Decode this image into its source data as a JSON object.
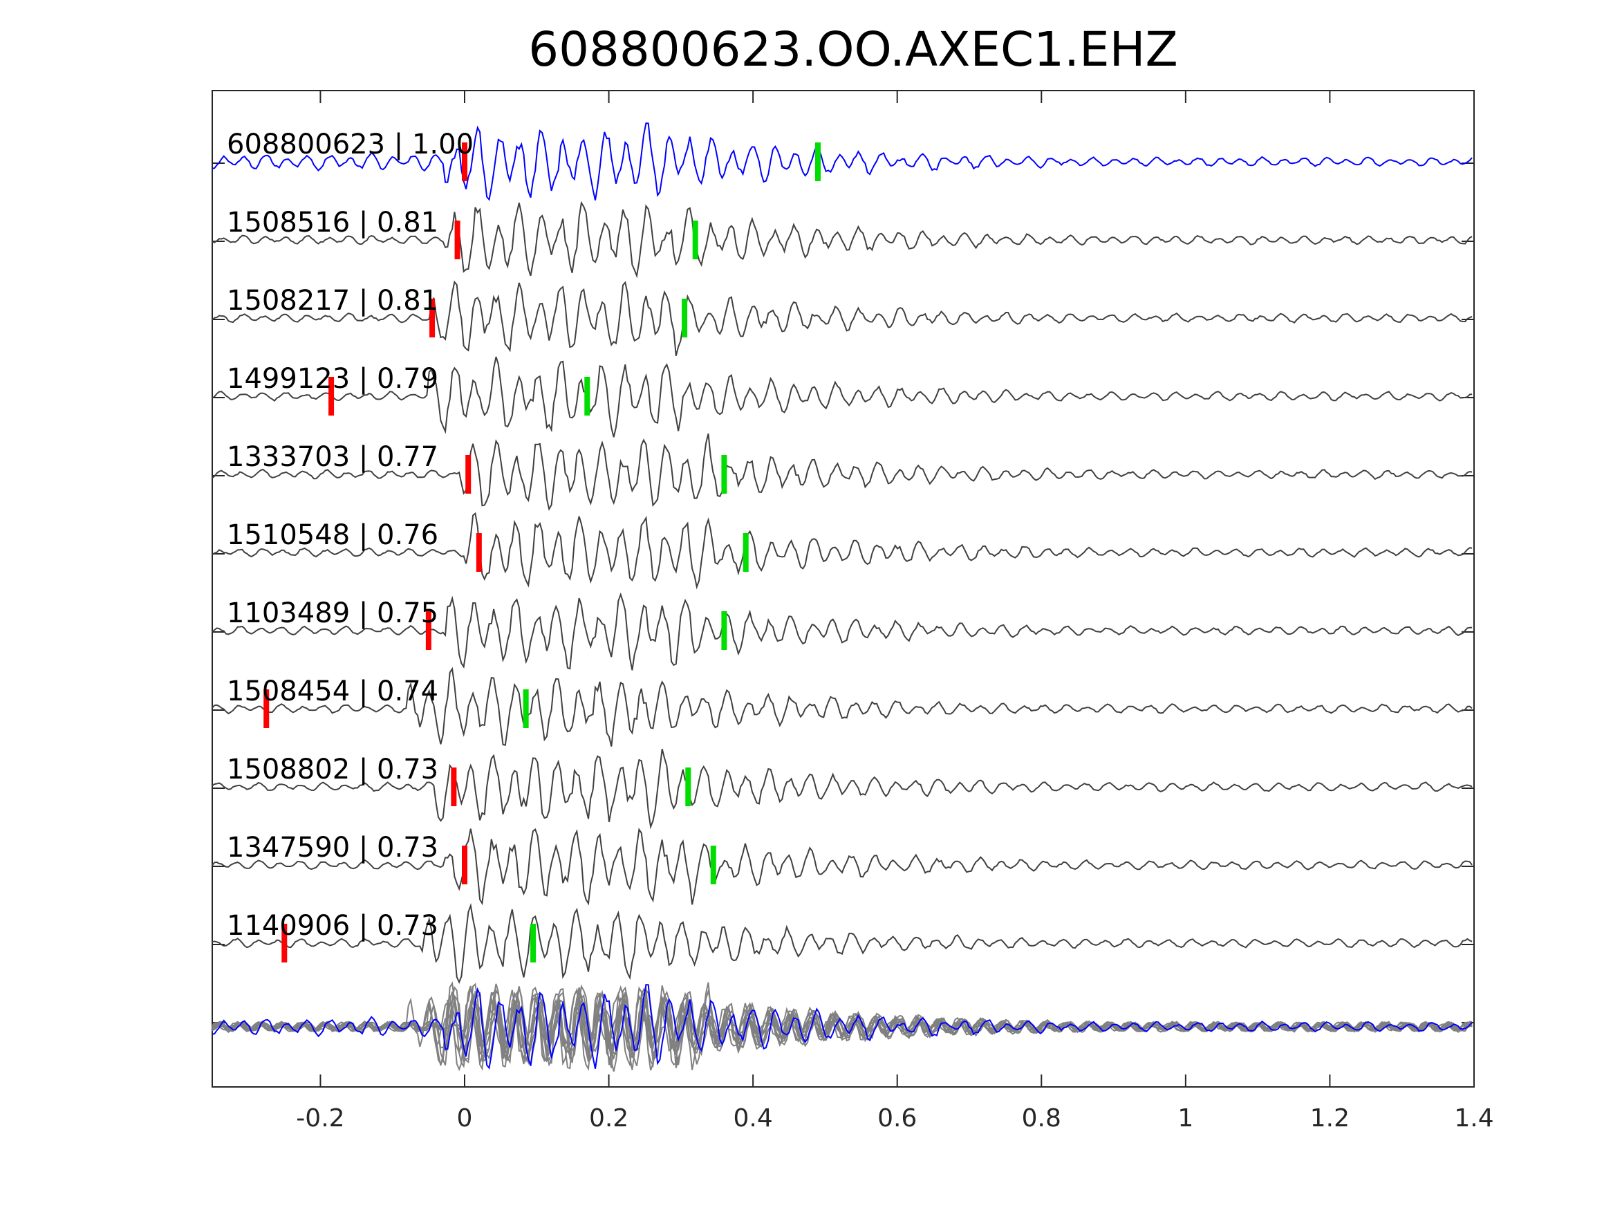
{
  "chart_data": {
    "type": "line",
    "title": "608800623.OO.AXEC1.EHZ",
    "xlabel": "",
    "ylabel": "",
    "xlim": [
      -0.35,
      1.4
    ],
    "xticks": [
      -0.2,
      0,
      0.2,
      0.4,
      0.6,
      0.8,
      1,
      1.2,
      1.4
    ],
    "xtick_labels": [
      "-0.2",
      "0",
      "0.2",
      "0.4",
      "0.6",
      "0.8",
      "1",
      "1.2",
      "1.4"
    ],
    "grid": false,
    "colors": {
      "master_trace": "#0000ff",
      "neighbor_trace": "#404040",
      "overlay_trace": "#808080",
      "p_pick": "#ff0000",
      "s_pick": "#00dd00"
    },
    "series": [
      {
        "label": "608800623 | 1.00",
        "p_pick": 0.0,
        "s_pick": 0.49,
        "onset": 0.0,
        "master": true
      },
      {
        "label": "1508516 | 0.81",
        "p_pick": -0.01,
        "s_pick": 0.32,
        "onset": 0.0
      },
      {
        "label": "1508217 | 0.81",
        "p_pick": -0.045,
        "s_pick": 0.305,
        "onset": -0.02
      },
      {
        "label": "1499123 | 0.79",
        "p_pick": -0.185,
        "s_pick": 0.17,
        "onset": -0.02
      },
      {
        "label": "1333703 | 0.77",
        "p_pick": 0.005,
        "s_pick": 0.36,
        "onset": 0.02
      },
      {
        "label": "1510548 | 0.76",
        "p_pick": 0.02,
        "s_pick": 0.39,
        "onset": 0.03
      },
      {
        "label": "1103489 | 0.75",
        "p_pick": -0.05,
        "s_pick": 0.36,
        "onset": 0.0
      },
      {
        "label": "1508454 | 0.74",
        "p_pick": -0.275,
        "s_pick": 0.085,
        "onset": -0.05
      },
      {
        "label": "1508802 | 0.73",
        "p_pick": -0.015,
        "s_pick": 0.31,
        "onset": -0.01
      },
      {
        "label": "1347590 | 0.73",
        "p_pick": 0.0,
        "s_pick": 0.345,
        "onset": 0.0
      },
      {
        "label": "1140906 | 0.73",
        "p_pick": -0.25,
        "s_pick": 0.095,
        "onset": -0.03
      }
    ]
  }
}
